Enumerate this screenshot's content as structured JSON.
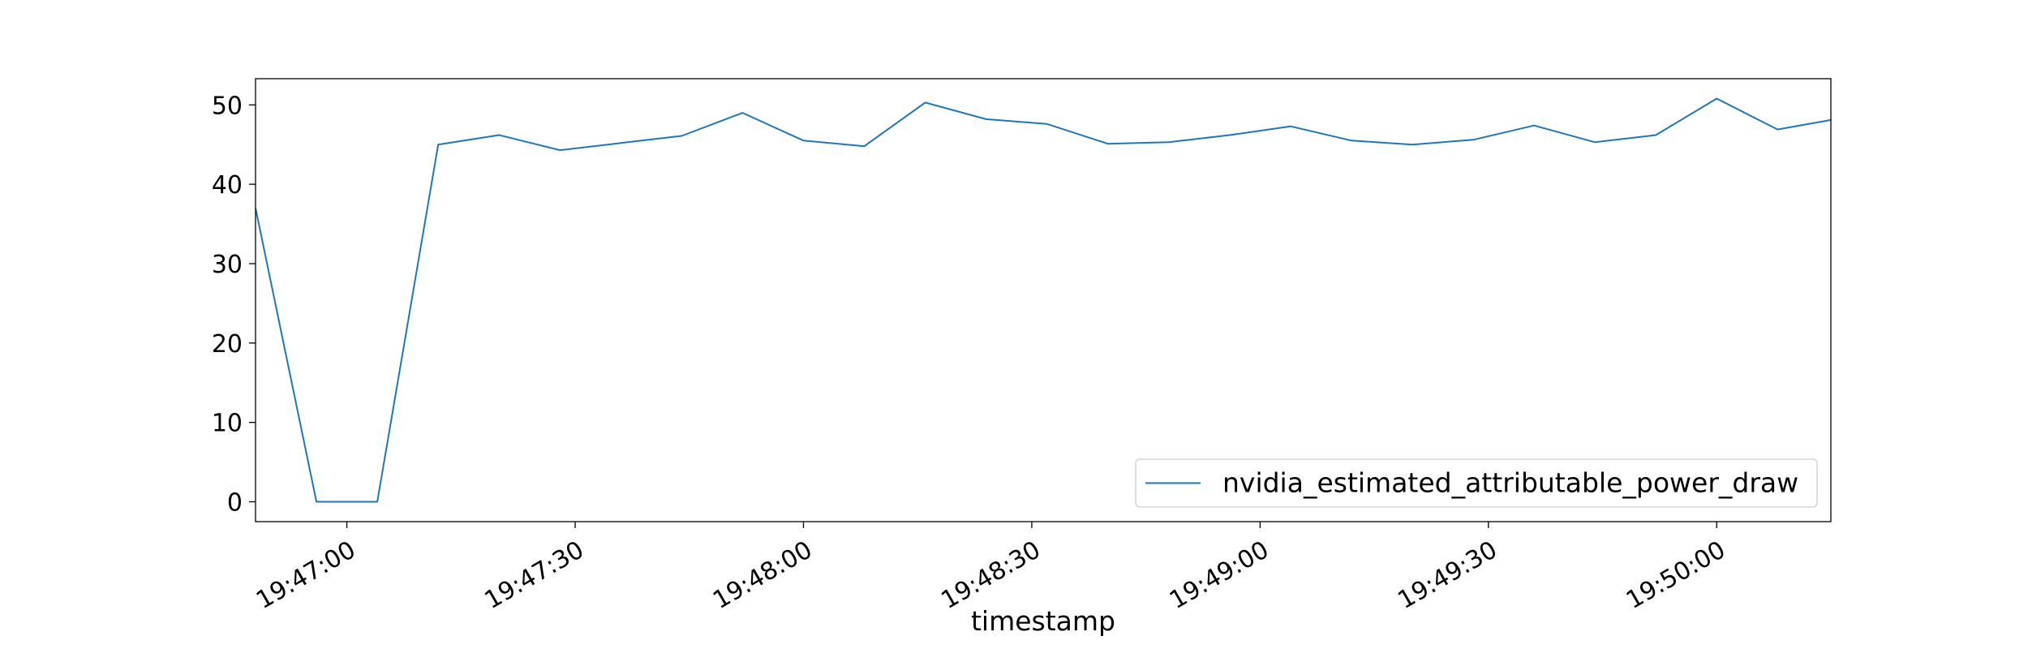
{
  "chart_data": {
    "type": "line",
    "title": "",
    "xlabel": "timestamp",
    "ylabel": "",
    "x_ticks": [
      "19:47:00",
      "19:47:30",
      "19:48:00",
      "19:48:30",
      "19:49:00",
      "19:49:30",
      "19:50:00"
    ],
    "y_ticks": [
      0,
      10,
      20,
      30,
      40,
      50
    ],
    "xlim": [
      "19:46:48",
      "19:50:15"
    ],
    "ylim": [
      -2.5,
      53.3
    ],
    "grid": false,
    "legend_placement": "lower-right",
    "colors": {
      "series": "#1f77b4",
      "axes": "#000000",
      "legend_border": "#cccccc"
    },
    "series": [
      {
        "name": "nvidia_estimated_attributable_power_draw",
        "x": [
          "19:46:48",
          "19:46:56",
          "19:47:04",
          "19:47:12",
          "19:47:20",
          "19:47:28",
          "19:47:36",
          "19:47:44",
          "19:47:52",
          "19:48:00",
          "19:48:08",
          "19:48:16",
          "19:48:24",
          "19:48:32",
          "19:48:40",
          "19:48:48",
          "19:48:56",
          "19:49:04",
          "19:49:12",
          "19:49:20",
          "19:49:28",
          "19:49:36",
          "19:49:44",
          "19:49:52",
          "19:50:00",
          "19:50:08",
          "19:50:15"
        ],
        "values": [
          37.0,
          0.0,
          0.0,
          45.0,
          46.2,
          44.3,
          45.2,
          46.1,
          49.0,
          45.5,
          44.8,
          50.3,
          48.2,
          47.6,
          45.1,
          45.3,
          46.2,
          47.3,
          45.5,
          45.0,
          45.6,
          47.4,
          45.3,
          46.2,
          50.8,
          46.9,
          48.1
        ]
      }
    ]
  }
}
